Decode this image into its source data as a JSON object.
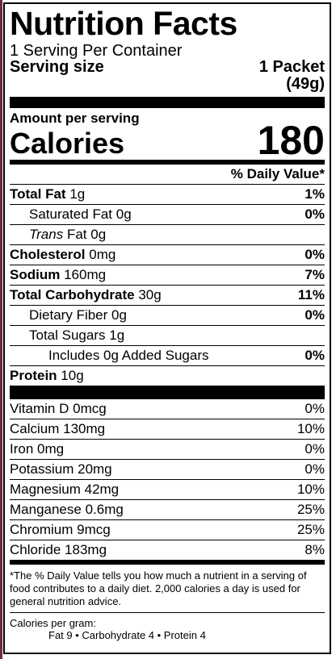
{
  "title": "Nutrition Facts",
  "servings_per_container": "1 Serving Per Container",
  "serving_size": {
    "label": "Serving size",
    "amount_line1": "1 Packet",
    "amount_line2": "(49g)"
  },
  "amount_per_serving": "Amount per serving",
  "calories": {
    "label": "Calories",
    "value": "180"
  },
  "dv_header": "% Daily Value*",
  "nutrients": {
    "total_fat": {
      "name": "Total Fat",
      "amount": "1g",
      "dv": "1%"
    },
    "saturated_fat": {
      "name": "Saturated Fat",
      "amount": "0g",
      "dv": "0%"
    },
    "trans_fat": {
      "name_italic": "Trans",
      "name": "Fat",
      "amount": "0g"
    },
    "cholesterol": {
      "name": "Cholesterol",
      "amount": "0mg",
      "dv": "0%"
    },
    "sodium": {
      "name": "Sodium",
      "amount": "160mg",
      "dv": "7%"
    },
    "total_carb": {
      "name": "Total Carbohydrate",
      "amount": "30g",
      "dv": "11%"
    },
    "dietary_fiber": {
      "name": "Dietary Fiber",
      "amount": "0g",
      "dv": "0%"
    },
    "total_sugars": {
      "name": "Total Sugars",
      "amount": "1g"
    },
    "added_sugars": {
      "text": "Includes 0g Added Sugars",
      "dv": "0%"
    },
    "protein": {
      "name": "Protein",
      "amount": "10g"
    }
  },
  "vitamins": [
    {
      "name": "Vitamin D",
      "amount": "0mcg",
      "dv": "0%"
    },
    {
      "name": "Calcium",
      "amount": "130mg",
      "dv": "10%"
    },
    {
      "name": "Iron",
      "amount": "0mg",
      "dv": "0%"
    },
    {
      "name": "Potassium",
      "amount": "20mg",
      "dv": "0%"
    },
    {
      "name": "Magnesium",
      "amount": "42mg",
      "dv": "10%"
    },
    {
      "name": "Manganese",
      "amount": "0.6mg",
      "dv": "25%"
    },
    {
      "name": "Chromium",
      "amount": "9mcg",
      "dv": "25%"
    },
    {
      "name": "Chloride",
      "amount": "183mg",
      "dv": "8%"
    }
  ],
  "footnote": "*The % Daily Value tells you how much a nutrient in a serving of food contributes to a daily diet. 2,000 calories a day is used for general nutrition advice.",
  "calories_per_gram": {
    "label": "Calories per gram:",
    "line": "Fat 9  •  Carbohydrate 4  •  Protein 4"
  }
}
